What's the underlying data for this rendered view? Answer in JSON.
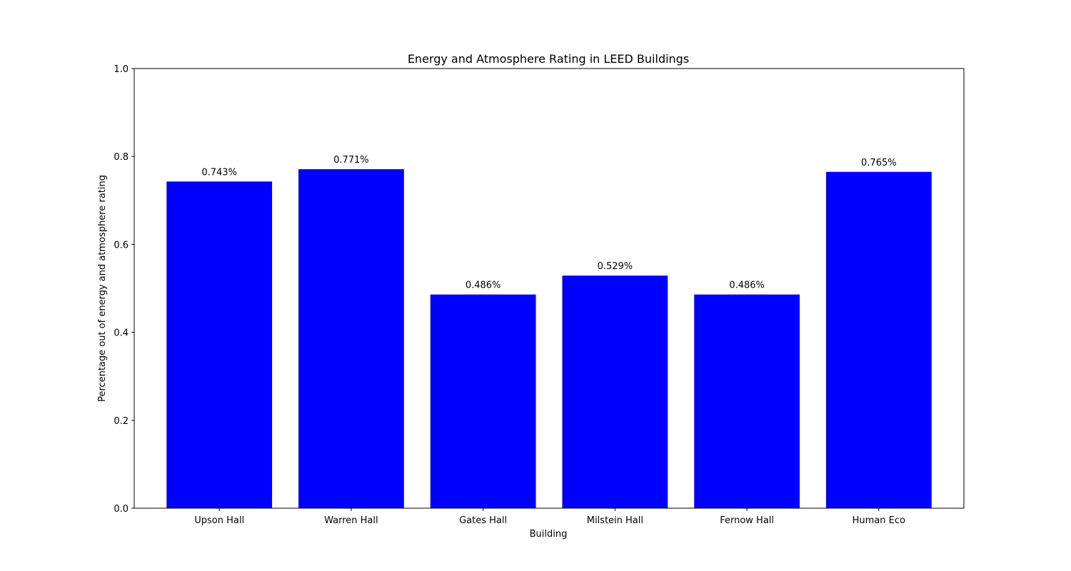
{
  "chart_data": {
    "type": "bar",
    "title": "Energy and Atmosphere Rating in LEED Buildings",
    "xlabel": "Building",
    "ylabel": "Percentage out of energy and atmosphere rating",
    "categories": [
      "Upson Hall",
      "Warren Hall",
      "Gates Hall",
      "Milstein Hall",
      "Fernow Hall",
      "Human Eco"
    ],
    "values": [
      0.743,
      0.771,
      0.486,
      0.529,
      0.486,
      0.765
    ],
    "data_labels": [
      "0.743%",
      "0.771%",
      "0.486%",
      "0.529%",
      "0.486%",
      "0.765%"
    ],
    "ylim": [
      0,
      1.0
    ],
    "yticks": [
      "0.0",
      "0.2",
      "0.4",
      "0.6",
      "0.8",
      "1.0"
    ],
    "bar_color": "#0000ff",
    "grid": false,
    "legend": "none"
  }
}
